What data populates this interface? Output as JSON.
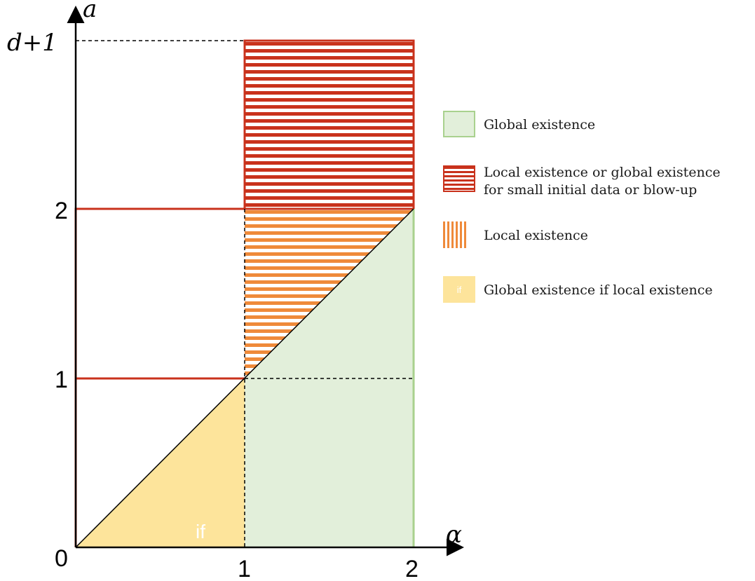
{
  "diagram": {
    "x_axis_label": "α",
    "y_axis_label": "a",
    "x_ticks": [
      "1",
      "2"
    ],
    "y_ticks": [
      "0",
      "1",
      "2",
      "d+1"
    ],
    "region_marker": "if",
    "colors": {
      "global_fill": "#e2efda",
      "global_border": "#a9d18e",
      "red": "#c9321c",
      "orange": "#ef8a3a",
      "yellow": "#fde49b"
    }
  },
  "legend": {
    "items": [
      {
        "swatch": "green",
        "label": "Global existence"
      },
      {
        "swatch": "red-stripes",
        "label": "Local existence or global existence\nfor small initial data or blow-up"
      },
      {
        "swatch": "orange-stripes",
        "label": "Local existence"
      },
      {
        "swatch": "yellow",
        "marker": "if",
        "label": "Global existence if local existence"
      }
    ]
  }
}
